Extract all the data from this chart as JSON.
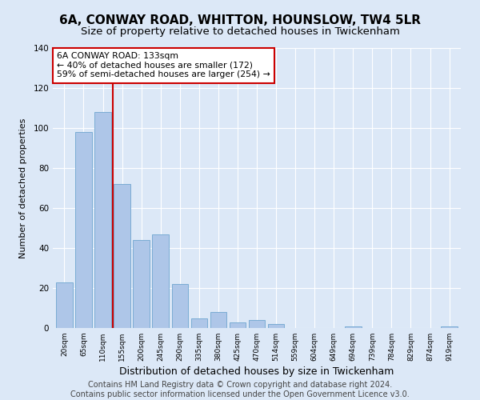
{
  "title": "6A, CONWAY ROAD, WHITTON, HOUNSLOW, TW4 5LR",
  "subtitle": "Size of property relative to detached houses in Twickenham",
  "xlabel": "Distribution of detached houses by size in Twickenham",
  "ylabel": "Number of detached properties",
  "categories": [
    "20sqm",
    "65sqm",
    "110sqm",
    "155sqm",
    "200sqm",
    "245sqm",
    "290sqm",
    "335sqm",
    "380sqm",
    "425sqm",
    "470sqm",
    "514sqm",
    "559sqm",
    "604sqm",
    "649sqm",
    "694sqm",
    "739sqm",
    "784sqm",
    "829sqm",
    "874sqm",
    "919sqm"
  ],
  "values": [
    23,
    98,
    108,
    72,
    44,
    47,
    22,
    5,
    8,
    3,
    4,
    2,
    0,
    0,
    0,
    1,
    0,
    0,
    0,
    0,
    1
  ],
  "bar_color": "#aec6e8",
  "bar_edge_color": "#7aacd4",
  "vline_x": 2.5,
  "vline_color": "#cc0000",
  "annotation_text": "6A CONWAY ROAD: 133sqm\n← 40% of detached houses are smaller (172)\n59% of semi-detached houses are larger (254) →",
  "annotation_box_color": "#ffffff",
  "annotation_box_edge": "#cc0000",
  "ylim": [
    0,
    140
  ],
  "yticks": [
    0,
    20,
    40,
    60,
    80,
    100,
    120,
    140
  ],
  "bg_color": "#dce8f7",
  "plot_bg": "#dce8f7",
  "footer": "Contains HM Land Registry data © Crown copyright and database right 2024.\nContains public sector information licensed under the Open Government Licence v3.0.",
  "title_fontsize": 11,
  "subtitle_fontsize": 9.5,
  "xlabel_fontsize": 9,
  "ylabel_fontsize": 8,
  "footer_fontsize": 7,
  "annotation_fontsize": 7.8
}
